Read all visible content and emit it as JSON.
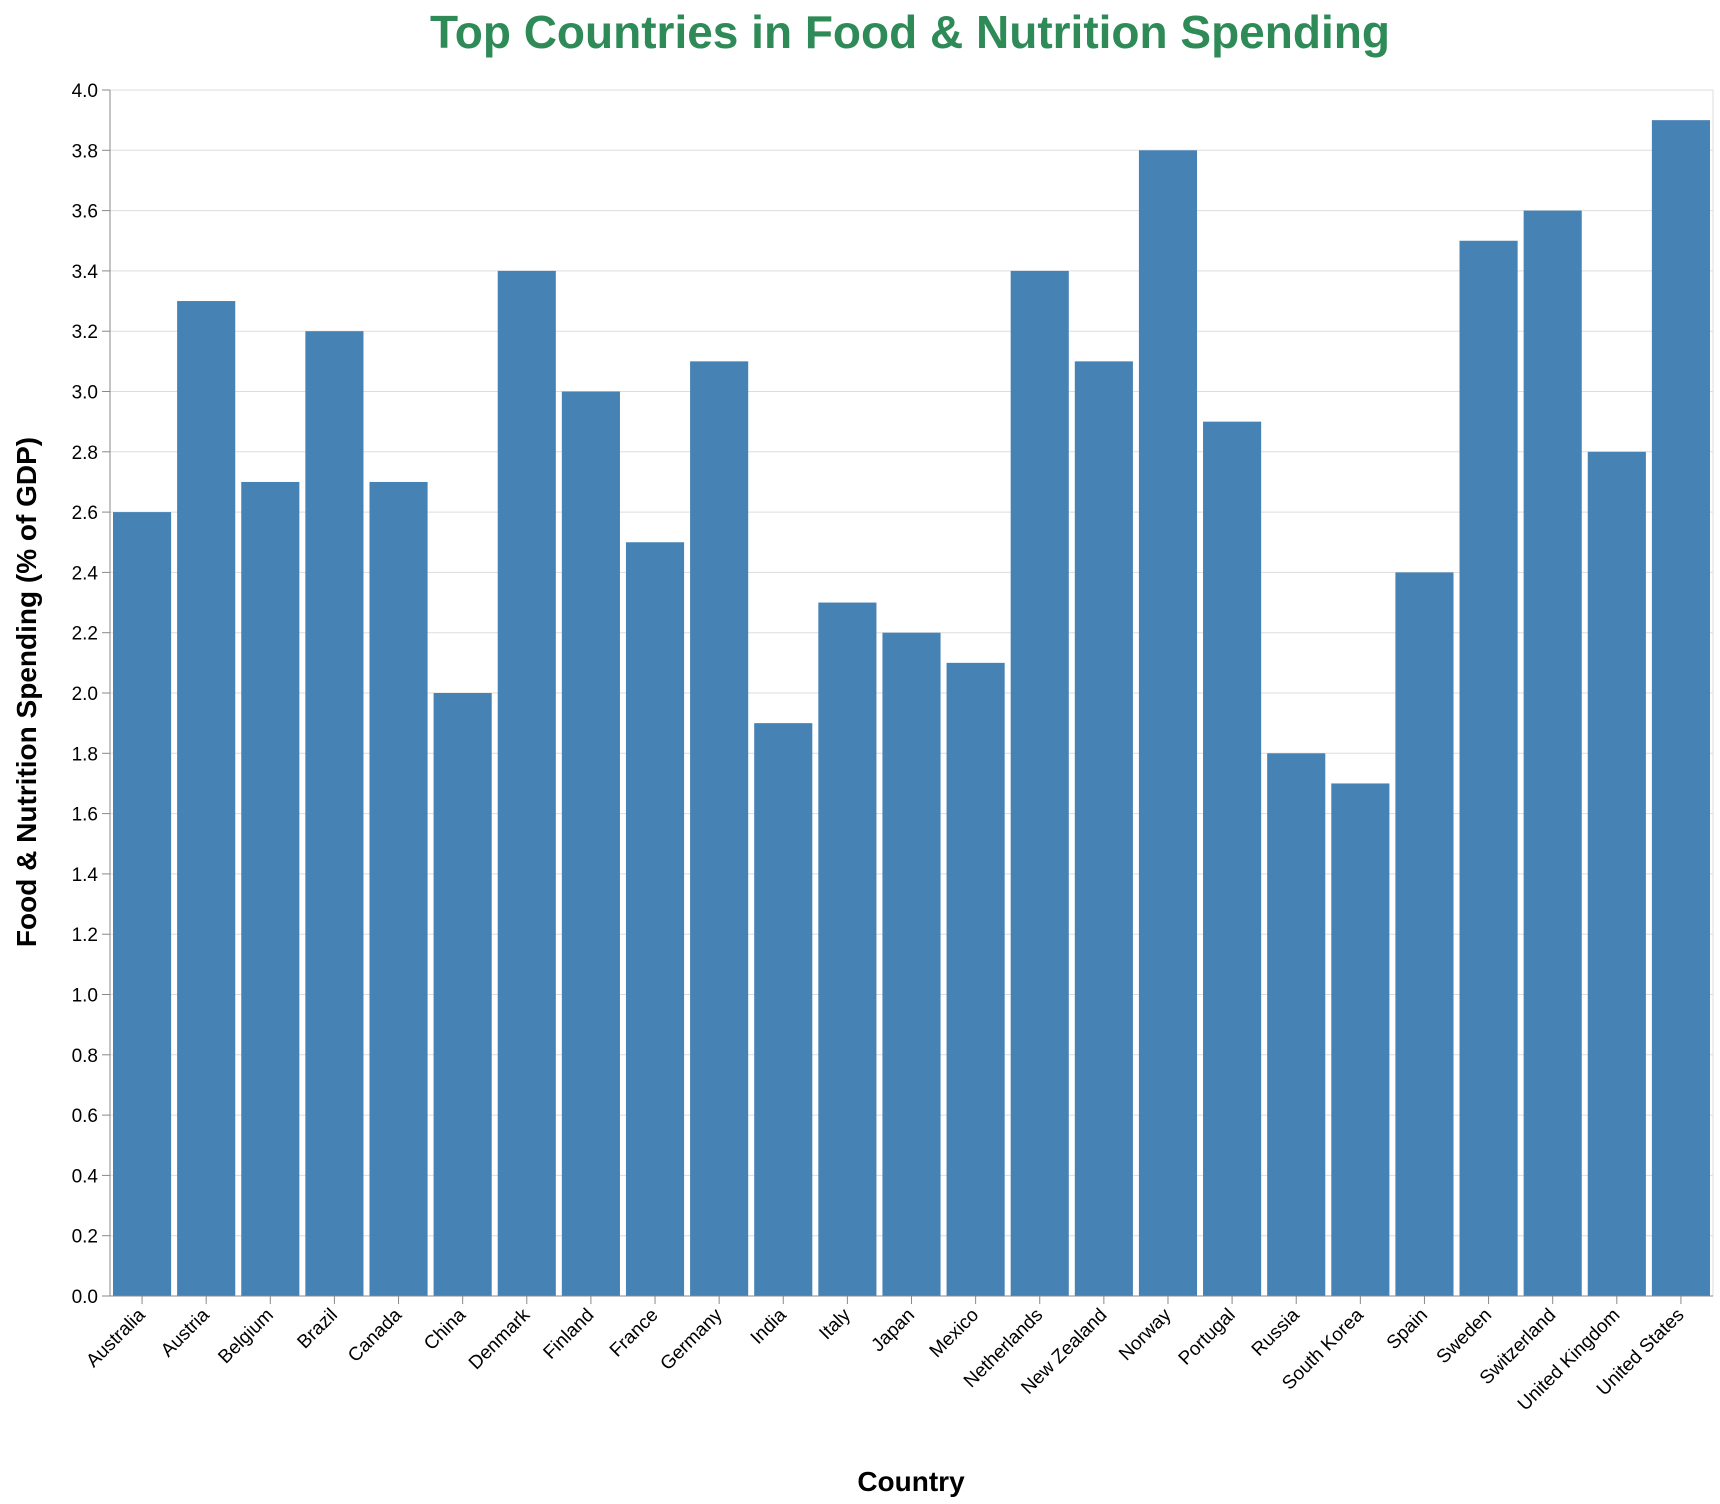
{
  "chart_data": {
    "type": "bar",
    "title": "Top Countries in Food & Nutrition Spending",
    "xlabel": "Country",
    "ylabel": "Food & Nutrition Spending (% of GDP)",
    "categories": [
      "Australia",
      "Austria",
      "Belgium",
      "Brazil",
      "Canada",
      "China",
      "Denmark",
      "Finland",
      "France",
      "Germany",
      "India",
      "Italy",
      "Japan",
      "Mexico",
      "Netherlands",
      "New Zealand",
      "Norway",
      "Portugal",
      "Russia",
      "South Korea",
      "Spain",
      "Sweden",
      "Switzerland",
      "United Kingdom",
      "United States"
    ],
    "values": [
      2.6,
      3.3,
      2.7,
      3.2,
      2.7,
      2.0,
      3.4,
      3.0,
      2.5,
      3.1,
      1.9,
      2.3,
      2.2,
      2.1,
      3.4,
      3.1,
      3.8,
      2.9,
      1.8,
      1.7,
      2.4,
      3.5,
      3.6,
      2.8,
      3.9
    ],
    "ylim": [
      0,
      4.0
    ],
    "yticks": [
      "0.0",
      "0.2",
      "0.4",
      "0.6",
      "0.8",
      "1.0",
      "1.2",
      "1.4",
      "1.6",
      "1.8",
      "2.0",
      "2.2",
      "2.4",
      "2.6",
      "2.8",
      "3.0",
      "3.2",
      "3.4",
      "3.6",
      "3.8",
      "4.0"
    ],
    "grid": true,
    "bar_color": "#4682b4",
    "title_color": "#2e8b57",
    "grid_color": "#dddddd",
    "axis_color": "#888888"
  }
}
